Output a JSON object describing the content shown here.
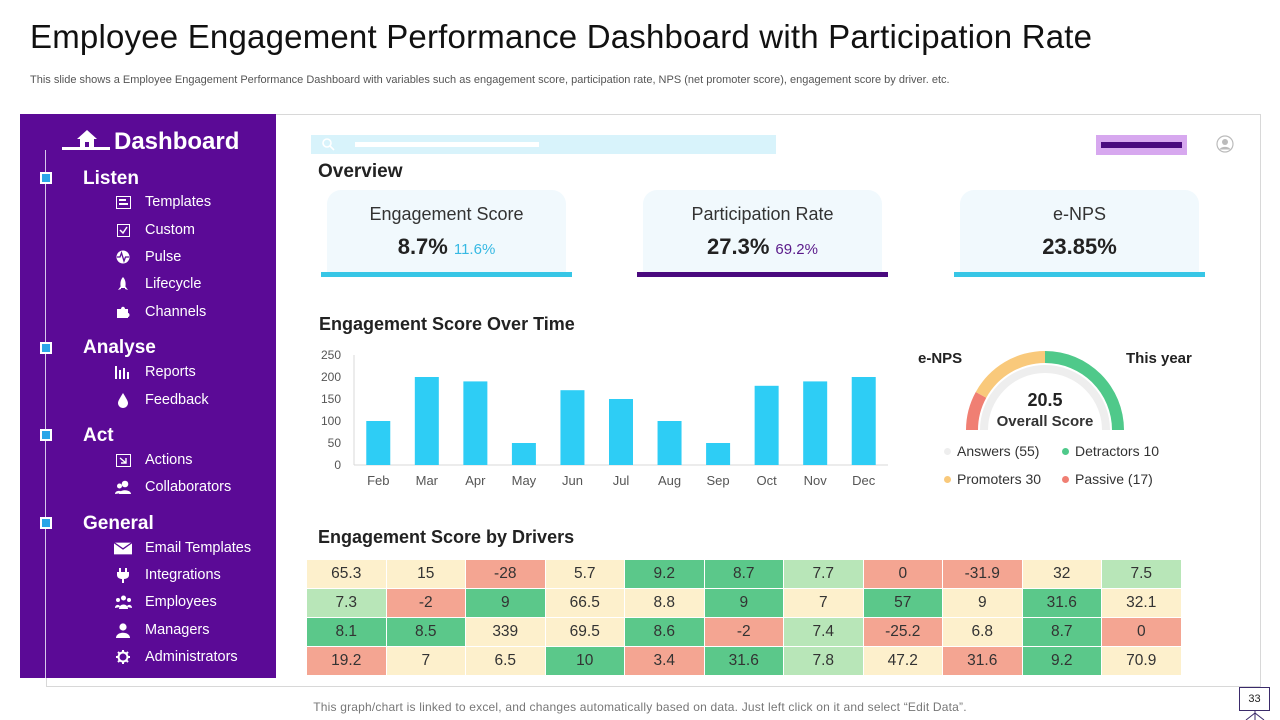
{
  "header": {
    "title": "Employee Engagement Performance Dashboard with Participation Rate",
    "subtitle": "This slide shows a Employee Engagement Performance Dashboard with variables such as engagement score, participation rate, NPS (net promoter score), engagement score by driver. etc."
  },
  "sidebar": {
    "title": "Dashboard",
    "sections": [
      {
        "label": "Listen",
        "items": [
          {
            "label": "Templates",
            "icon": "template-icon"
          },
          {
            "label": "Custom",
            "icon": "custom-icon"
          },
          {
            "label": "Pulse",
            "icon": "pulse-icon"
          },
          {
            "label": "Lifecycle",
            "icon": "rocket-icon"
          },
          {
            "label": "Channels",
            "icon": "puzzle-icon"
          }
        ]
      },
      {
        "label": "Analyse",
        "items": [
          {
            "label": "Reports",
            "icon": "bar-chart-icon"
          },
          {
            "label": "Feedback",
            "icon": "drop-icon"
          }
        ]
      },
      {
        "label": "Act",
        "items": [
          {
            "label": "Actions",
            "icon": "actions-icon"
          },
          {
            "label": "Collaborators",
            "icon": "users-icon"
          }
        ]
      },
      {
        "label": "General",
        "items": [
          {
            "label": "Email Templates",
            "icon": "envelope-icon"
          },
          {
            "label": "Integrations",
            "icon": "plug-icon"
          },
          {
            "label": "Employees",
            "icon": "employees-icon"
          },
          {
            "label": "Managers",
            "icon": "manager-icon"
          },
          {
            "label": "Administrators",
            "icon": "gear-icon"
          }
        ]
      }
    ]
  },
  "overview": {
    "title": "Overview",
    "cards": [
      {
        "label": "Engagement Score",
        "value": "8.7%",
        "sub": "11.6%",
        "sub_color": "#37b9e3",
        "line_color": "#37c6e6"
      },
      {
        "label": "Participation Rate",
        "value": "27.3%",
        "sub": "69.2%",
        "sub_color": "#5a1a8a",
        "line_color": "#4a0a7e"
      },
      {
        "label": "e-NPS",
        "value": "23.85%",
        "sub": "",
        "sub_color": "#333333",
        "line_color": "#37c6e6"
      }
    ]
  },
  "chart_data": {
    "type": "bar",
    "title": "Engagement Score Over Time",
    "categories": [
      "Feb",
      "Mar",
      "Apr",
      "May",
      "Jun",
      "Jul",
      "Aug",
      "Sep",
      "Oct",
      "Nov",
      "Dec"
    ],
    "values": [
      100,
      200,
      190,
      50,
      170,
      150,
      100,
      50,
      180,
      190,
      200
    ],
    "ylim": [
      0,
      250
    ],
    "yticks": [
      "0",
      "50",
      "100",
      "150",
      "200",
      "250"
    ],
    "xlabel": "",
    "ylabel": "",
    "bar_color": "#2ecdf5"
  },
  "enps": {
    "left_label": "e-NPS",
    "right_label": "This year",
    "score": "20.5",
    "score_label": "Overall Score",
    "segments": [
      {
        "name": "Passive",
        "fraction": 0.16,
        "color": "#f07f73"
      },
      {
        "name": "Promoters",
        "fraction": 0.34,
        "color": "#f9c97b"
      },
      {
        "name": "Detractors",
        "fraction": 0.5,
        "color": "#4fc98a"
      }
    ],
    "legend": [
      {
        "label": "Answers (55)",
        "color": "#eeeeee"
      },
      {
        "label": "Detractors 10",
        "color": "#4fc98a"
      },
      {
        "label": "Promoters 30",
        "color": "#f9c97b"
      },
      {
        "label": "Passive (17)",
        "color": "#f07f73"
      }
    ]
  },
  "drivers": {
    "title": "Engagement Score by Drivers",
    "rows": [
      [
        "65.3",
        "15",
        "-28",
        "5.7",
        "9.2",
        "8.7",
        "7.7",
        "0",
        "-31.9",
        "32",
        "7.5"
      ],
      [
        "7.3",
        "-2",
        "9",
        "66.5",
        "8.8",
        "9",
        "7",
        "57",
        "9",
        "31.6",
        "32.1"
      ],
      [
        "8.1",
        "8.5",
        "339",
        "69.5",
        "8.6",
        "-2",
        "7.4",
        "-25.2",
        "6.8",
        "8.7",
        "0"
      ],
      [
        "19.2",
        "7",
        "6.5",
        "10",
        "3.4",
        "31.6",
        "7.8",
        "47.2",
        "31.6",
        "9.2",
        "70.9"
      ]
    ],
    "colors": [
      [
        "#fdf0cc",
        "#fdf0cc",
        "#f4a592",
        "#fdf0cc",
        "#5bc88a",
        "#5bc88a",
        "#b8e6b8",
        "#f4a592",
        "#f4a592",
        "#fdf0cc",
        "#b8e6b8"
      ],
      [
        "#b8e6b8",
        "#f4a592",
        "#5bc88a",
        "#fdf0cc",
        "#fdf0cc",
        "#5bc88a",
        "#fdf0cc",
        "#5bc88a",
        "#fdf0cc",
        "#5bc88a",
        "#fdf0cc"
      ],
      [
        "#5bc88a",
        "#5bc88a",
        "#fdf0cc",
        "#fdf0cc",
        "#5bc88a",
        "#f4a592",
        "#b8e6b8",
        "#f4a592",
        "#fdf0cc",
        "#5bc88a",
        "#f4a592"
      ],
      [
        "#f4a592",
        "#fdf0cc",
        "#fdf0cc",
        "#5bc88a",
        "#f4a592",
        "#5bc88a",
        "#b8e6b8",
        "#fdf0cc",
        "#f4a592",
        "#5bc88a",
        "#fdf0cc"
      ]
    ]
  },
  "footer": {
    "note": "This graph/chart is linked to excel, and changes automatically based on data. Just left click on it and select “Edit Data”.",
    "page_number": "33"
  }
}
